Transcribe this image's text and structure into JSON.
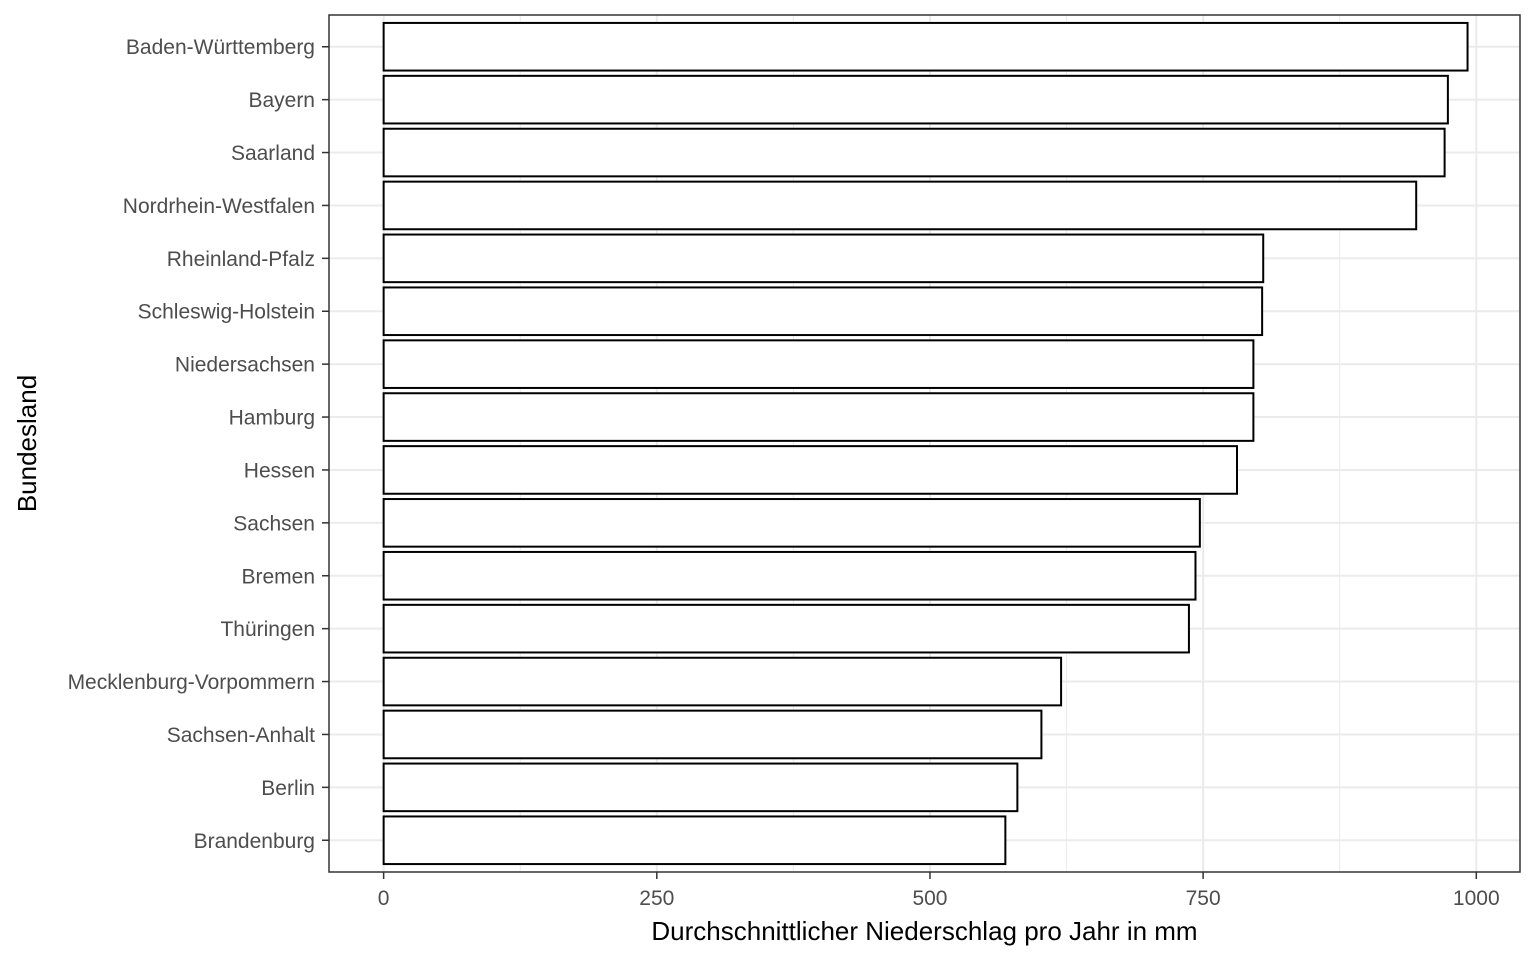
{
  "chart_data": {
    "type": "bar",
    "orientation": "horizontal",
    "xlabel": "Durchschnittlicher Niederschlag pro Jahr in mm",
    "ylabel": "Bundesland",
    "xlim": [
      -50,
      1040
    ],
    "x_ticks": [
      0,
      250,
      500,
      750,
      1000
    ],
    "x_tick_labels": [
      "0",
      "250",
      "500",
      "750",
      "1000"
    ],
    "grid": true,
    "legend": "none",
    "categories": [
      "Baden-Württemberg",
      "Bayern",
      "Saarland",
      "Nordrhein-Westfalen",
      "Rheinland-Pfalz",
      "Schleswig-Holstein",
      "Niedersachsen",
      "Hamburg",
      "Hessen",
      "Sachsen",
      "Bremen",
      "Thüringen",
      "Mecklenburg-Vorpommern",
      "Sachsen-Anhalt",
      "Berlin",
      "Brandenburg"
    ],
    "values": [
      992,
      974,
      971,
      945,
      805,
      804,
      796,
      796,
      781,
      747,
      743,
      737,
      620,
      602,
      580,
      569
    ],
    "bar_fill": "#ffffff",
    "bar_stroke": "#000000",
    "panel_border": "#333333",
    "grid_color": "#ebebeb"
  }
}
